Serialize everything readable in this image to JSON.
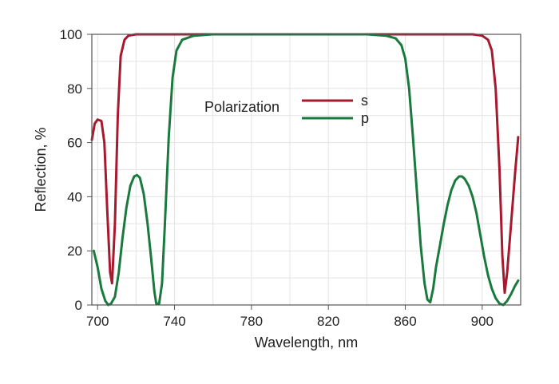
{
  "chart_data": {
    "type": "line",
    "xlabel": "Wavelength, nm",
    "ylabel": "Reflection, %",
    "xlim": [
      697,
      920
    ],
    "ylim": [
      0,
      100
    ],
    "xticks": [
      700,
      740,
      780,
      820,
      860,
      900
    ],
    "yticks": [
      0,
      20,
      40,
      60,
      80,
      100
    ],
    "grid": true,
    "legend_title": "Polarization",
    "legend_position": "top-center",
    "series": [
      {
        "name": "s",
        "color": "#a6192e",
        "points": [
          [
            697,
            61
          ],
          [
            698.5,
            67
          ],
          [
            700,
            68.5
          ],
          [
            702,
            68
          ],
          [
            703.5,
            60
          ],
          [
            705,
            35
          ],
          [
            706.5,
            12
          ],
          [
            707.5,
            8
          ],
          [
            709,
            30
          ],
          [
            710.5,
            70
          ],
          [
            712,
            92
          ],
          [
            714,
            98
          ],
          [
            716,
            99.5
          ],
          [
            720,
            100
          ],
          [
            740,
            100
          ],
          [
            780,
            100
          ],
          [
            820,
            100
          ],
          [
            860,
            100
          ],
          [
            880,
            100
          ],
          [
            895,
            100
          ],
          [
            900,
            99.5
          ],
          [
            903,
            98
          ],
          [
            905,
            94
          ],
          [
            907,
            80
          ],
          [
            909,
            50
          ],
          [
            910.5,
            18
          ],
          [
            911.7,
            4.5
          ],
          [
            913,
            12
          ],
          [
            915,
            30
          ],
          [
            917,
            48
          ],
          [
            918.7,
            62
          ]
        ]
      },
      {
        "name": "p",
        "color": "#1a7a3e",
        "points": [
          [
            698,
            20
          ],
          [
            700,
            14
          ],
          [
            702,
            6
          ],
          [
            704,
            1.5
          ],
          [
            705.5,
            0
          ],
          [
            707,
            0.5
          ],
          [
            709,
            3
          ],
          [
            711,
            12
          ],
          [
            713,
            25
          ],
          [
            715,
            36
          ],
          [
            717,
            44
          ],
          [
            719,
            47.5
          ],
          [
            720.5,
            48
          ],
          [
            722,
            47
          ],
          [
            724,
            41
          ],
          [
            726,
            30
          ],
          [
            728,
            16
          ],
          [
            729.5,
            5
          ],
          [
            730.5,
            0.5
          ],
          [
            732,
            0.5
          ],
          [
            733.5,
            8
          ],
          [
            735,
            30
          ],
          [
            737,
            62
          ],
          [
            739,
            84
          ],
          [
            741,
            94
          ],
          [
            744,
            98
          ],
          [
            750,
            99.5
          ],
          [
            760,
            100
          ],
          [
            780,
            100
          ],
          [
            820,
            100
          ],
          [
            840,
            100
          ],
          [
            850,
            99.5
          ],
          [
            855,
            98.5
          ],
          [
            858,
            96
          ],
          [
            860,
            91
          ],
          [
            862,
            80
          ],
          [
            864,
            62
          ],
          [
            866,
            42
          ],
          [
            868,
            22
          ],
          [
            870,
            8
          ],
          [
            871.5,
            2
          ],
          [
            873,
            1
          ],
          [
            874.5,
            6
          ],
          [
            876,
            14
          ],
          [
            878,
            22
          ],
          [
            880,
            30
          ],
          [
            882,
            37
          ],
          [
            884,
            42.5
          ],
          [
            886,
            46
          ],
          [
            888,
            47.5
          ],
          [
            889.5,
            47.5
          ],
          [
            891,
            46.5
          ],
          [
            893,
            44
          ],
          [
            895,
            40
          ],
          [
            897,
            34
          ],
          [
            899,
            26
          ],
          [
            901,
            18
          ],
          [
            903,
            11
          ],
          [
            905,
            6
          ],
          [
            907,
            2.5
          ],
          [
            909,
            0.5
          ],
          [
            911,
            0
          ],
          [
            913,
            1.5
          ],
          [
            915,
            4
          ],
          [
            917,
            7
          ],
          [
            918.7,
            9
          ]
        ]
      }
    ]
  }
}
